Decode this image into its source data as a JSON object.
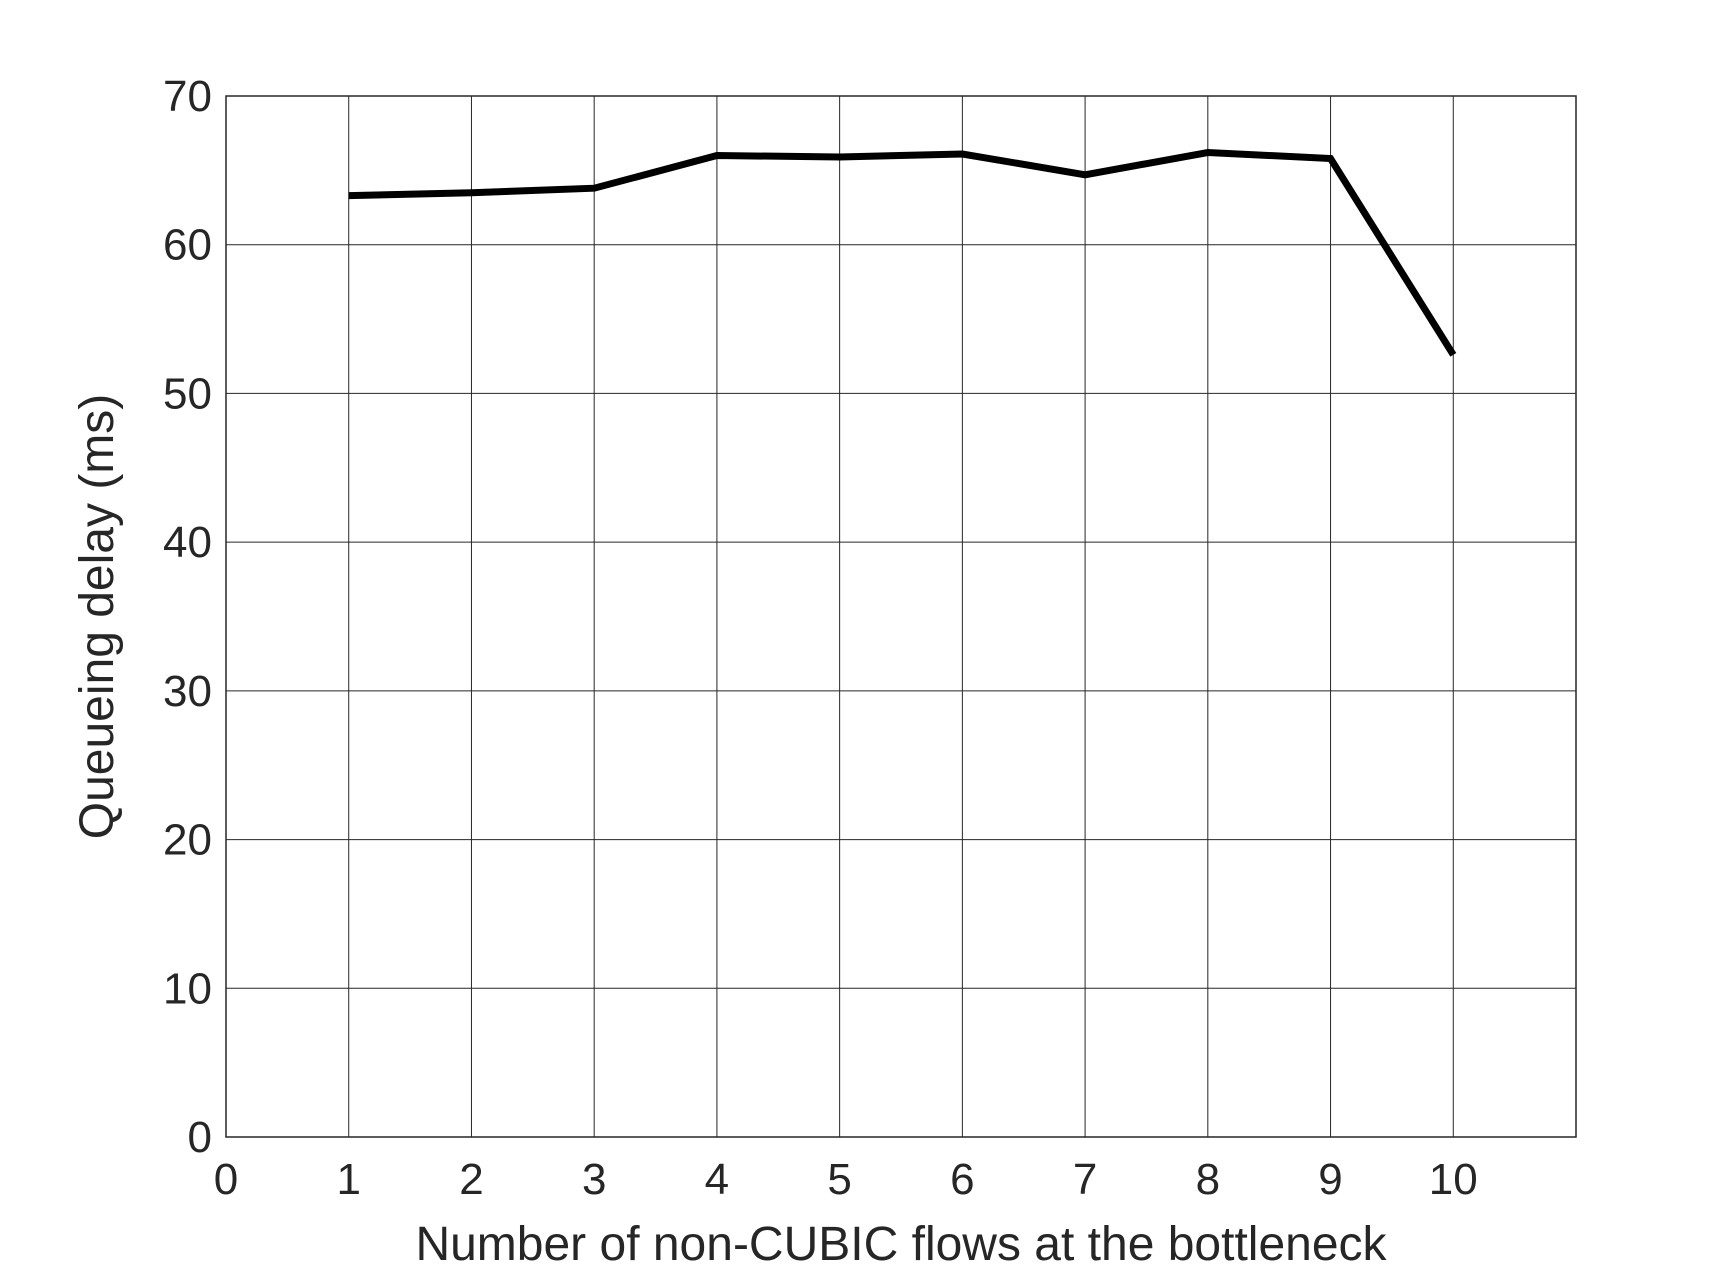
{
  "chart_data": {
    "type": "line",
    "title": "",
    "xlabel": "Number of non-CUBIC flows at the bottleneck",
    "ylabel": "Queueing delay (ms)",
    "xlim": [
      0,
      11
    ],
    "ylim": [
      0,
      70
    ],
    "xticks": [
      0,
      1,
      2,
      3,
      4,
      5,
      6,
      7,
      8,
      9,
      10
    ],
    "yticks": [
      0,
      10,
      20,
      30,
      40,
      50,
      60,
      70
    ],
    "grid": true,
    "legend": "none",
    "series": [
      {
        "color": "#000000",
        "x": [
          1,
          2,
          3,
          4,
          5,
          6,
          7,
          8,
          9,
          10
        ],
        "y": [
          63.3,
          63.5,
          63.8,
          66.0,
          65.9,
          66.1,
          64.7,
          66.2,
          65.8,
          52.6
        ]
      }
    ]
  }
}
